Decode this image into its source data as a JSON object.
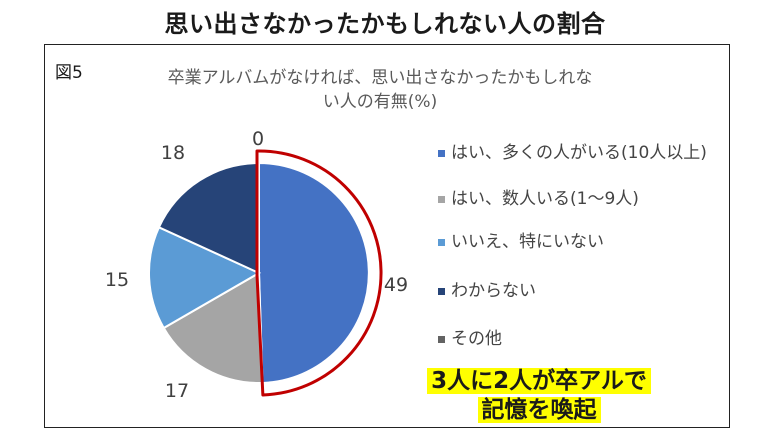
{
  "page_title": "思い出さなかったかもしれない人の割合",
  "figure_label": "図5",
  "callout": {
    "line1": "3人に2人が卒アルで",
    "line2": "記憶を喚起"
  },
  "chart_data": {
    "type": "pie",
    "title_lines": [
      "卒業アルバムがなければ、思い出さなかったかもしれな",
      "い人の有無(%)"
    ],
    "slices": [
      {
        "label": "はい、多くの人がいる(10人以上)",
        "value": 49,
        "color": "#4472c4"
      },
      {
        "label": "はい、数人いる(1〜9人)",
        "value": 17,
        "color": "#a5a5a5"
      },
      {
        "label": "いいえ、特にいない",
        "value": 15,
        "color": "#5b9bd5"
      },
      {
        "label": "わからない",
        "value": 18,
        "color": "#264478"
      },
      {
        "label": "その他",
        "value": 0,
        "color": "#636363"
      }
    ],
    "highlight_color": "#c00000",
    "legend_position": "right"
  }
}
